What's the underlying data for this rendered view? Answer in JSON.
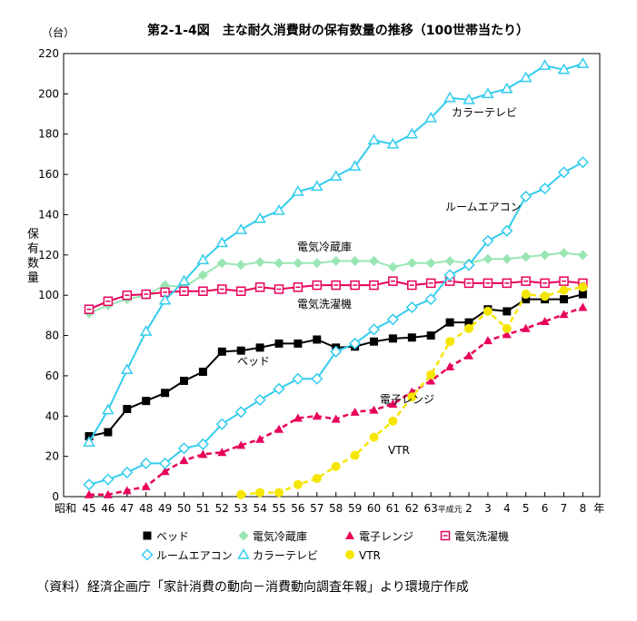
{
  "chart_data": {
    "type": "line",
    "title": "第2-1-4図　主な耐久消費財の保有数量の推移（100世帯当たり）",
    "unit_label": "（台）",
    "ylabel": "保有数量",
    "x_unit": "年",
    "era_label": "昭和",
    "ylim": [
      0,
      220
    ],
    "ytick_step": 20,
    "grid": false,
    "categories": [
      "45",
      "46",
      "47",
      "48",
      "49",
      "50",
      "51",
      "52",
      "53",
      "54",
      "55",
      "56",
      "57",
      "58",
      "59",
      "60",
      "61",
      "62",
      "63",
      "平成元",
      "2",
      "3",
      "4",
      "5",
      "6",
      "7",
      "8"
    ],
    "series": [
      {
        "name": "ベッド",
        "color": "#000000",
        "marker": "square",
        "dashed": false,
        "values": [
          30,
          32,
          43.5,
          47.5,
          51.5,
          57.5,
          62,
          72,
          72.5,
          74,
          76,
          76,
          78,
          74,
          74.5,
          77,
          78.5,
          79,
          80,
          86.5,
          86.5,
          93,
          92,
          98,
          98,
          98,
          100.5
        ]
      },
      {
        "name": "電気冷蔵庫",
        "color": "#99e6b3",
        "marker": "diamond",
        "dashed": false,
        "values": [
          91,
          95,
          98,
          100,
          105,
          104,
          110,
          116,
          115,
          116.5,
          116,
          116,
          116,
          117,
          117,
          117,
          114,
          116,
          116,
          117,
          116,
          118,
          118,
          119,
          120,
          121,
          120
        ]
      },
      {
        "name": "電子レンジ",
        "color": "#e8005a",
        "marker": "triangle",
        "dashed": true,
        "values": [
          1,
          1,
          3,
          5,
          12.5,
          18,
          21,
          22,
          25.5,
          28.5,
          33.5,
          39,
          40,
          38.5,
          42,
          43,
          46,
          52,
          57.5,
          64.5,
          70,
          77.5,
          80.5,
          83.5,
          87,
          90.5,
          94
        ]
      },
      {
        "name": "電気洗濯機",
        "color": "#e8005a",
        "marker": "square-open",
        "dashed": false,
        "values": [
          93,
          97,
          100,
          100.5,
          101.5,
          102,
          102,
          103,
          102,
          104,
          103,
          104,
          105,
          105,
          105,
          105,
          107,
          105,
          106,
          107,
          106,
          106,
          106,
          107,
          106,
          107,
          106
        ]
      },
      {
        "name": "ルームエアコン",
        "color": "#33ccee",
        "marker": "diamond-open",
        "dashed": false,
        "values": [
          6,
          8.5,
          12,
          16.5,
          16.5,
          24,
          26,
          36,
          42,
          48,
          53.5,
          58.5,
          58.5,
          72,
          76,
          83,
          88,
          94,
          98,
          110,
          115,
          127,
          132,
          149,
          153,
          161,
          166
        ]
      },
      {
        "name": "カラーテレビ",
        "color": "#33ccee",
        "marker": "triangle-open",
        "dashed": false,
        "values": [
          27,
          43,
          63,
          82,
          97.5,
          107,
          117.5,
          126,
          132.5,
          138,
          142,
          151.5,
          154,
          159,
          164,
          177,
          175,
          180,
          188,
          198,
          197,
          200,
          202.5,
          208,
          214,
          212,
          215
        ]
      },
      {
        "name": "VTR",
        "color": "#f5e600",
        "marker": "circle",
        "dashed": true,
        "values": [
          null,
          null,
          null,
          null,
          null,
          null,
          null,
          null,
          1,
          2,
          2,
          6,
          9,
          15,
          20.5,
          29.5,
          37.5,
          49.5,
          60.5,
          77,
          83.5,
          92,
          83.5,
          100.5,
          99.5,
          102.5,
          104
        ]
      }
    ],
    "inline_labels": [
      "カラーテレビ",
      "ルームエアコン",
      "電気冷蔵庫",
      "電気洗濯機",
      "ベッド",
      "電子レンジ",
      "VTR"
    ],
    "legend_placement": "bottom"
  },
  "source_note": "（資料）経済企画庁「家計消費の動向－消費動向調査年報」より環境庁作成"
}
